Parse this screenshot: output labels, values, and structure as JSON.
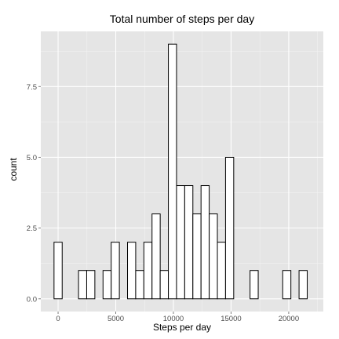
{
  "chart_data": {
    "type": "bar",
    "title": "Total number of steps per day",
    "xlabel": "Steps per day",
    "ylabel": "count",
    "xlim": [
      -1500,
      23000
    ],
    "ylim": [
      -0.45,
      9.45
    ],
    "x_ticks": [
      0,
      5000,
      10000,
      15000,
      20000
    ],
    "x_tick_labels": [
      "0",
      "5000",
      "10000",
      "15000",
      "20000"
    ],
    "y_ticks": [
      0,
      2.5,
      5,
      7.5
    ],
    "y_tick_labels": [
      "0.0",
      "2.5",
      "5.0",
      "7.5"
    ],
    "grid": true,
    "legend": "none",
    "bin_width": 708.3,
    "bin_starts": [
      -354,
      354,
      1063,
      1771,
      2479,
      3188,
      3896,
      4604,
      5313,
      6021,
      6729,
      7438,
      8146,
      8854,
      9563,
      10271,
      10979,
      11688,
      12396,
      13104,
      13813,
      14521,
      15229,
      15938,
      16646,
      17354,
      18063,
      18771,
      19479,
      20188,
      20896,
      21604
    ],
    "values": [
      2,
      0,
      0,
      1,
      1,
      0,
      1,
      2,
      0,
      2,
      1,
      2,
      3,
      1,
      9,
      4,
      4,
      3,
      4,
      3,
      2,
      5,
      0,
      0,
      1,
      0,
      0,
      0,
      1,
      0,
      1,
      0
    ],
    "colors": {
      "panel": "#E5E5E5",
      "grid_major": "#FFFFFF",
      "grid_minor": "#F2F2F2",
      "bar_fill": "#FFFFFF",
      "bar_stroke": "#000000",
      "tick_text": "#4D4D4D"
    }
  }
}
